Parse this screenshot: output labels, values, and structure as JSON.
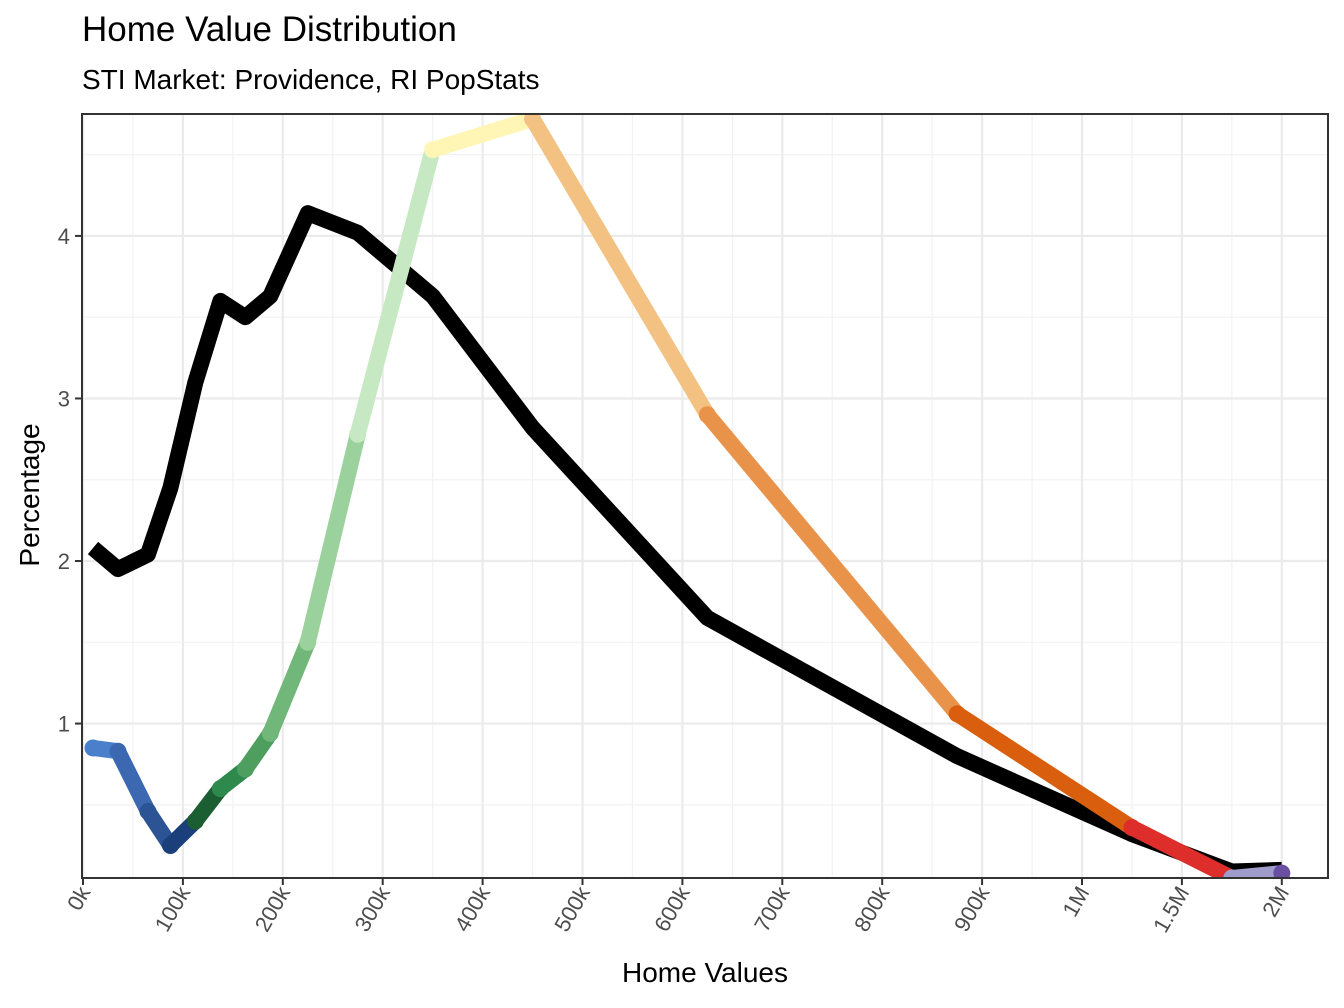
{
  "chart_data": {
    "type": "line",
    "title": "Home Value Distribution",
    "subtitle": "STI Market: Providence, RI PopStats",
    "xlabel": "Home Values",
    "ylabel": "Percentage",
    "x_tick_labels": [
      "0k",
      "100k",
      "200k",
      "300k",
      "400k",
      "500k",
      "600k",
      "700k",
      "800k",
      "900k",
      "1M",
      "1.5M",
      "2M"
    ],
    "y_ticks": [
      1,
      2,
      3,
      4
    ],
    "ylim": [
      0.05,
      4.75
    ],
    "grid": true,
    "legend": "none",
    "series": [
      {
        "color": "#000000",
        "points": [
          {
            "x": "10k",
            "y": 2.08
          },
          {
            "x": "35k",
            "y": 1.95
          },
          {
            "x": "65k",
            "y": 2.04
          },
          {
            "x": "87.5k",
            "y": 2.45
          },
          {
            "x": "112.5k",
            "y": 3.1
          },
          {
            "x": "137.5k",
            "y": 3.6
          },
          {
            "x": "162.5k",
            "y": 3.5
          },
          {
            "x": "187.5k",
            "y": 3.63
          },
          {
            "x": "225k",
            "y": 4.14
          },
          {
            "x": "275k",
            "y": 4.02
          },
          {
            "x": "350k",
            "y": 3.63
          },
          {
            "x": "450k",
            "y": 2.82
          },
          {
            "x": "625k",
            "y": 1.65
          },
          {
            "x": "875k",
            "y": 0.8
          },
          {
            "x": "1.25M",
            "y": 0.32
          },
          {
            "x": "1.75M",
            "y": 0.09
          },
          {
            "x": "2M+",
            "y": 0.1
          }
        ]
      },
      {
        "name": "Providence, RI",
        "points": [
          {
            "x": "10k",
            "y": 0.85,
            "color": "#4A7FCC"
          },
          {
            "x": "35k",
            "y": 0.83,
            "color": "#3B68B0"
          },
          {
            "x": "65k",
            "y": 0.46,
            "color": "#2C5494"
          },
          {
            "x": "87.5k",
            "y": 0.25,
            "color": "#1A3F7A"
          },
          {
            "x": "112.5k",
            "y": 0.4,
            "color": "#1B5E32"
          },
          {
            "x": "137.5k",
            "y": 0.6,
            "color": "#2E8A4C"
          },
          {
            "x": "162.5k",
            "y": 0.72,
            "color": "#4E9E5F"
          },
          {
            "x": "187.5k",
            "y": 0.94,
            "color": "#72B77A"
          },
          {
            "x": "225k",
            "y": 1.5,
            "color": "#9BD19C"
          },
          {
            "x": "275k",
            "y": 2.78,
            "color": "#C6E8C3"
          },
          {
            "x": "350k",
            "y": 4.53,
            "color": "#FFF5B5"
          },
          {
            "x": "450k",
            "y": 4.72,
            "color": "#F3C282"
          },
          {
            "x": "625k",
            "y": 2.9,
            "color": "#E8924A"
          },
          {
            "x": "875k",
            "y": 1.06,
            "color": "#D95F0E"
          },
          {
            "x": "1.25M",
            "y": 0.36,
            "color": "#DD2E2B"
          },
          {
            "x": "1.75M",
            "y": 0.05,
            "color": "#9F9BCB"
          },
          {
            "x": "2M+",
            "y": 0.08,
            "color": "#6A4FA3"
          }
        ]
      }
    ]
  }
}
